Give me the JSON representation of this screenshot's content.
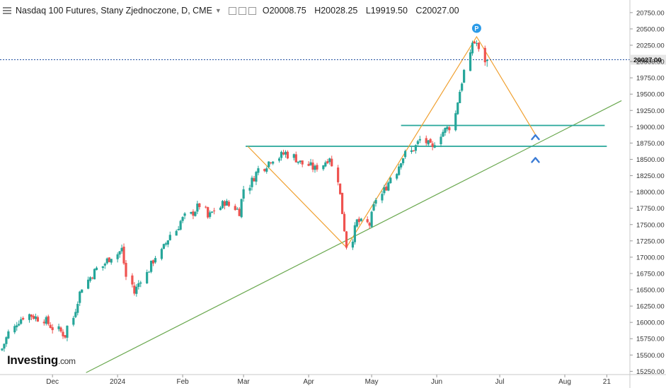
{
  "header": {
    "title": "Nasdaq 100 Futures, Stany Zjednoczone, D, CME",
    "open": "O20008.75",
    "high": "H20028.25",
    "low": "L19919.50",
    "close": "C20027.00"
  },
  "logo": {
    "main": "Investing",
    "suffix": ".com"
  },
  "marker": {
    "label": "P"
  },
  "colors": {
    "up": "#26a69a",
    "down": "#ef5350",
    "trend": "#6aa84f",
    "zigzag": "#f0a030",
    "support": "#26a69a",
    "price_line": "#1f4fa0",
    "arrow": "#3a7bd5"
  },
  "chart_data": {
    "type": "candlestick",
    "title": "Nasdaq 100 Futures, Stany Zjednoczone, D, CME",
    "ylim": [
      15200,
      20900
    ],
    "y_ticks": [
      15250,
      15500,
      15750,
      16000,
      16250,
      16500,
      16750,
      17000,
      17250,
      17500,
      17750,
      18000,
      18250,
      18500,
      18750,
      19000,
      19250,
      19500,
      19750,
      20000,
      20250,
      20500,
      20750
    ],
    "y_tick_labels": [
      "15250.00",
      "15500.00",
      "15750.00",
      "16000.00",
      "16250.00",
      "16500.00",
      "16750.00",
      "17000.00",
      "17250.00",
      "17500.00",
      "17750.00",
      "18000.00",
      "18250.00",
      "18500.00",
      "18750.00",
      "19000.00",
      "19250.00",
      "19500.00",
      "19750.00",
      "20000.00",
      "20250.00",
      "20500.00",
      "20750.00"
    ],
    "x_ticks": [
      {
        "label": "Dec",
        "date": "2023-12-01"
      },
      {
        "label": "2024",
        "date": "2024-01-01"
      },
      {
        "label": "Feb",
        "date": "2024-02-01"
      },
      {
        "label": "Mar",
        "date": "2024-03-01"
      },
      {
        "label": "Apr",
        "date": "2024-04-01"
      },
      {
        "label": "May",
        "date": "2024-05-01"
      },
      {
        "label": "Jun",
        "date": "2024-06-01"
      },
      {
        "label": "Jul",
        "date": "2024-07-01"
      },
      {
        "label": "Aug",
        "date": "2024-08-01"
      },
      {
        "label": "21",
        "date": "2024-08-21"
      }
    ],
    "xlim": [
      "2023-11-06",
      "2024-09-01"
    ],
    "last_price": 20027.0,
    "last_price_label": "20027.00",
    "anchors": [
      {
        "date": "2023-11-07",
        "close": 15600
      },
      {
        "date": "2023-11-14",
        "close": 16000
      },
      {
        "date": "2023-11-20",
        "close": 16120
      },
      {
        "date": "2023-11-27",
        "close": 16050
      },
      {
        "date": "2023-12-04",
        "close": 15880
      },
      {
        "date": "2023-12-07",
        "close": 15800
      },
      {
        "date": "2023-12-13",
        "close": 16350
      },
      {
        "date": "2023-12-18",
        "close": 16650
      },
      {
        "date": "2023-12-27",
        "close": 16950
      },
      {
        "date": "2024-01-03",
        "close": 17120
      },
      {
        "date": "2024-01-05",
        "close": 16700
      },
      {
        "date": "2024-01-09",
        "close": 16450
      },
      {
        "date": "2024-01-15",
        "close": 16750
      },
      {
        "date": "2024-01-22",
        "close": 17080
      },
      {
        "date": "2024-01-31",
        "close": 17550
      },
      {
        "date": "2024-02-05",
        "close": 17650
      },
      {
        "date": "2024-02-09",
        "close": 17800
      },
      {
        "date": "2024-02-13",
        "close": 17600
      },
      {
        "date": "2024-02-21",
        "close": 17850
      },
      {
        "date": "2024-02-28",
        "close": 17700
      },
      {
        "date": "2024-03-01",
        "close": 18050
      },
      {
        "date": "2024-03-08",
        "close": 18350
      },
      {
        "date": "2024-03-14",
        "close": 18500
      },
      {
        "date": "2024-03-21",
        "close": 18600
      },
      {
        "date": "2024-03-28",
        "close": 18450
      },
      {
        "date": "2024-04-04",
        "close": 18350
      },
      {
        "date": "2024-04-11",
        "close": 18550
      },
      {
        "date": "2024-04-15",
        "close": 18200
      },
      {
        "date": "2024-04-19",
        "close": 17180
      },
      {
        "date": "2024-04-24",
        "close": 17550
      },
      {
        "date": "2024-04-30",
        "close": 17500
      },
      {
        "date": "2024-05-03",
        "close": 17900
      },
      {
        "date": "2024-05-09",
        "close": 18150
      },
      {
        "date": "2024-05-15",
        "close": 18500
      },
      {
        "date": "2024-05-22",
        "close": 18700
      },
      {
        "date": "2024-05-24",
        "close": 18800
      },
      {
        "date": "2024-05-30",
        "close": 18650
      },
      {
        "date": "2024-06-03",
        "close": 18900
      },
      {
        "date": "2024-06-07",
        "close": 19000
      },
      {
        "date": "2024-06-11",
        "close": 19400
      },
      {
        "date": "2024-06-14",
        "close": 19850
      },
      {
        "date": "2024-06-18",
        "close": 20300
      },
      {
        "date": "2024-06-20",
        "close": 20280
      },
      {
        "date": "2024-06-24",
        "close": 20020
      },
      {
        "date": "2024-06-25",
        "close": 20027
      }
    ],
    "overlays": {
      "trendline": [
        {
          "date": "2023-12-17",
          "price": 15230
        },
        {
          "date": "2024-08-28",
          "price": 19400
        }
      ],
      "resistance_upper": {
        "from": "2024-05-15",
        "to": "2024-08-20",
        "price": 19020
      },
      "support_lower": {
        "from": "2024-03-02",
        "to": "2024-08-21",
        "price": 18700
      },
      "zigzag": [
        {
          "date": "2024-03-03",
          "price": 18700
        },
        {
          "date": "2024-04-19",
          "price": 17150
        },
        {
          "date": "2024-06-20",
          "price": 20380
        },
        {
          "date": "2024-07-18",
          "price": 18880
        }
      ],
      "arrows_up": [
        {
          "date": "2024-07-18",
          "price": 18840
        },
        {
          "date": "2024-07-18",
          "price": 18490
        }
      ],
      "pivot_marker": {
        "date": "2024-06-20",
        "price": 20510,
        "label": "P"
      }
    }
  }
}
